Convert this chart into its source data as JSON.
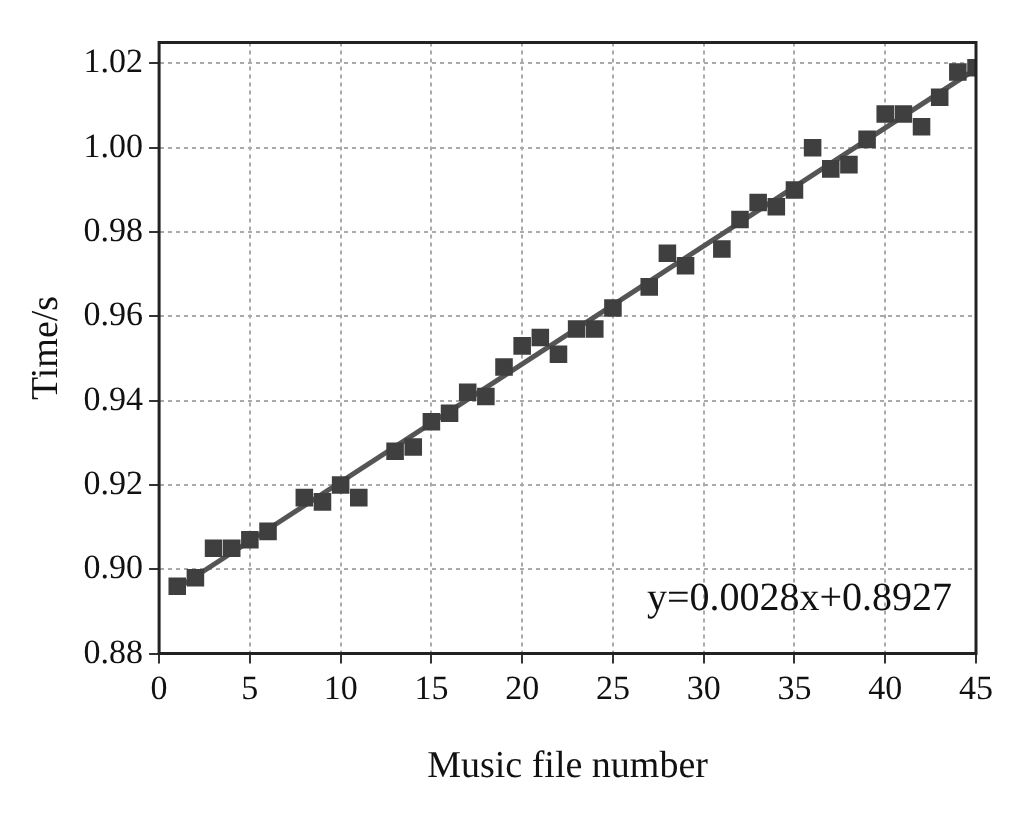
{
  "chart_data": {
    "type": "scatter",
    "xlabel": "Music file number",
    "ylabel": "Time/s",
    "xlim": [
      0,
      45
    ],
    "ylim": [
      0.88,
      1.025
    ],
    "xticks": [
      0,
      5,
      10,
      15,
      20,
      25,
      30,
      35,
      40,
      45
    ],
    "yticks": [
      0.88,
      {
        "value": 0.9,
        "label": "0.90"
      },
      0.92,
      0.94,
      0.96,
      0.98,
      {
        "value": 1.0,
        "label": "1.00"
      },
      1.02
    ],
    "grid": true,
    "legend": false,
    "annotations": [
      "y=0.0028x+0.8927"
    ],
    "series": [
      {
        "marker": "square",
        "color": "#3f3f3f",
        "x": [
          1,
          2,
          3,
          4,
          5,
          6,
          8,
          9,
          10,
          11,
          13,
          14,
          15,
          16,
          17,
          18,
          19,
          20,
          21,
          22,
          23,
          24,
          25,
          27,
          28,
          29,
          31,
          32,
          33,
          34,
          35,
          36,
          37,
          38,
          39,
          40,
          41,
          42,
          43,
          44,
          45
        ],
        "values": [
          0.896,
          0.898,
          0.905,
          0.905,
          0.907,
          0.909,
          0.917,
          0.916,
          0.92,
          0.917,
          0.928,
          0.929,
          0.935,
          0.937,
          0.942,
          0.941,
          0.948,
          0.953,
          0.955,
          0.951,
          0.957,
          0.957,
          0.962,
          0.967,
          0.975,
          0.972,
          0.976,
          0.983,
          0.987,
          0.986,
          0.99,
          1.0,
          0.995,
          0.996,
          1.002,
          1.008,
          1.008,
          1.005,
          1.012,
          1.018,
          1.019
        ]
      },
      {
        "type": "line",
        "marker": "none",
        "color": "#555555",
        "x": [
          1,
          45
        ],
        "values": [
          0.8955,
          1.0187
        ]
      }
    ]
  }
}
